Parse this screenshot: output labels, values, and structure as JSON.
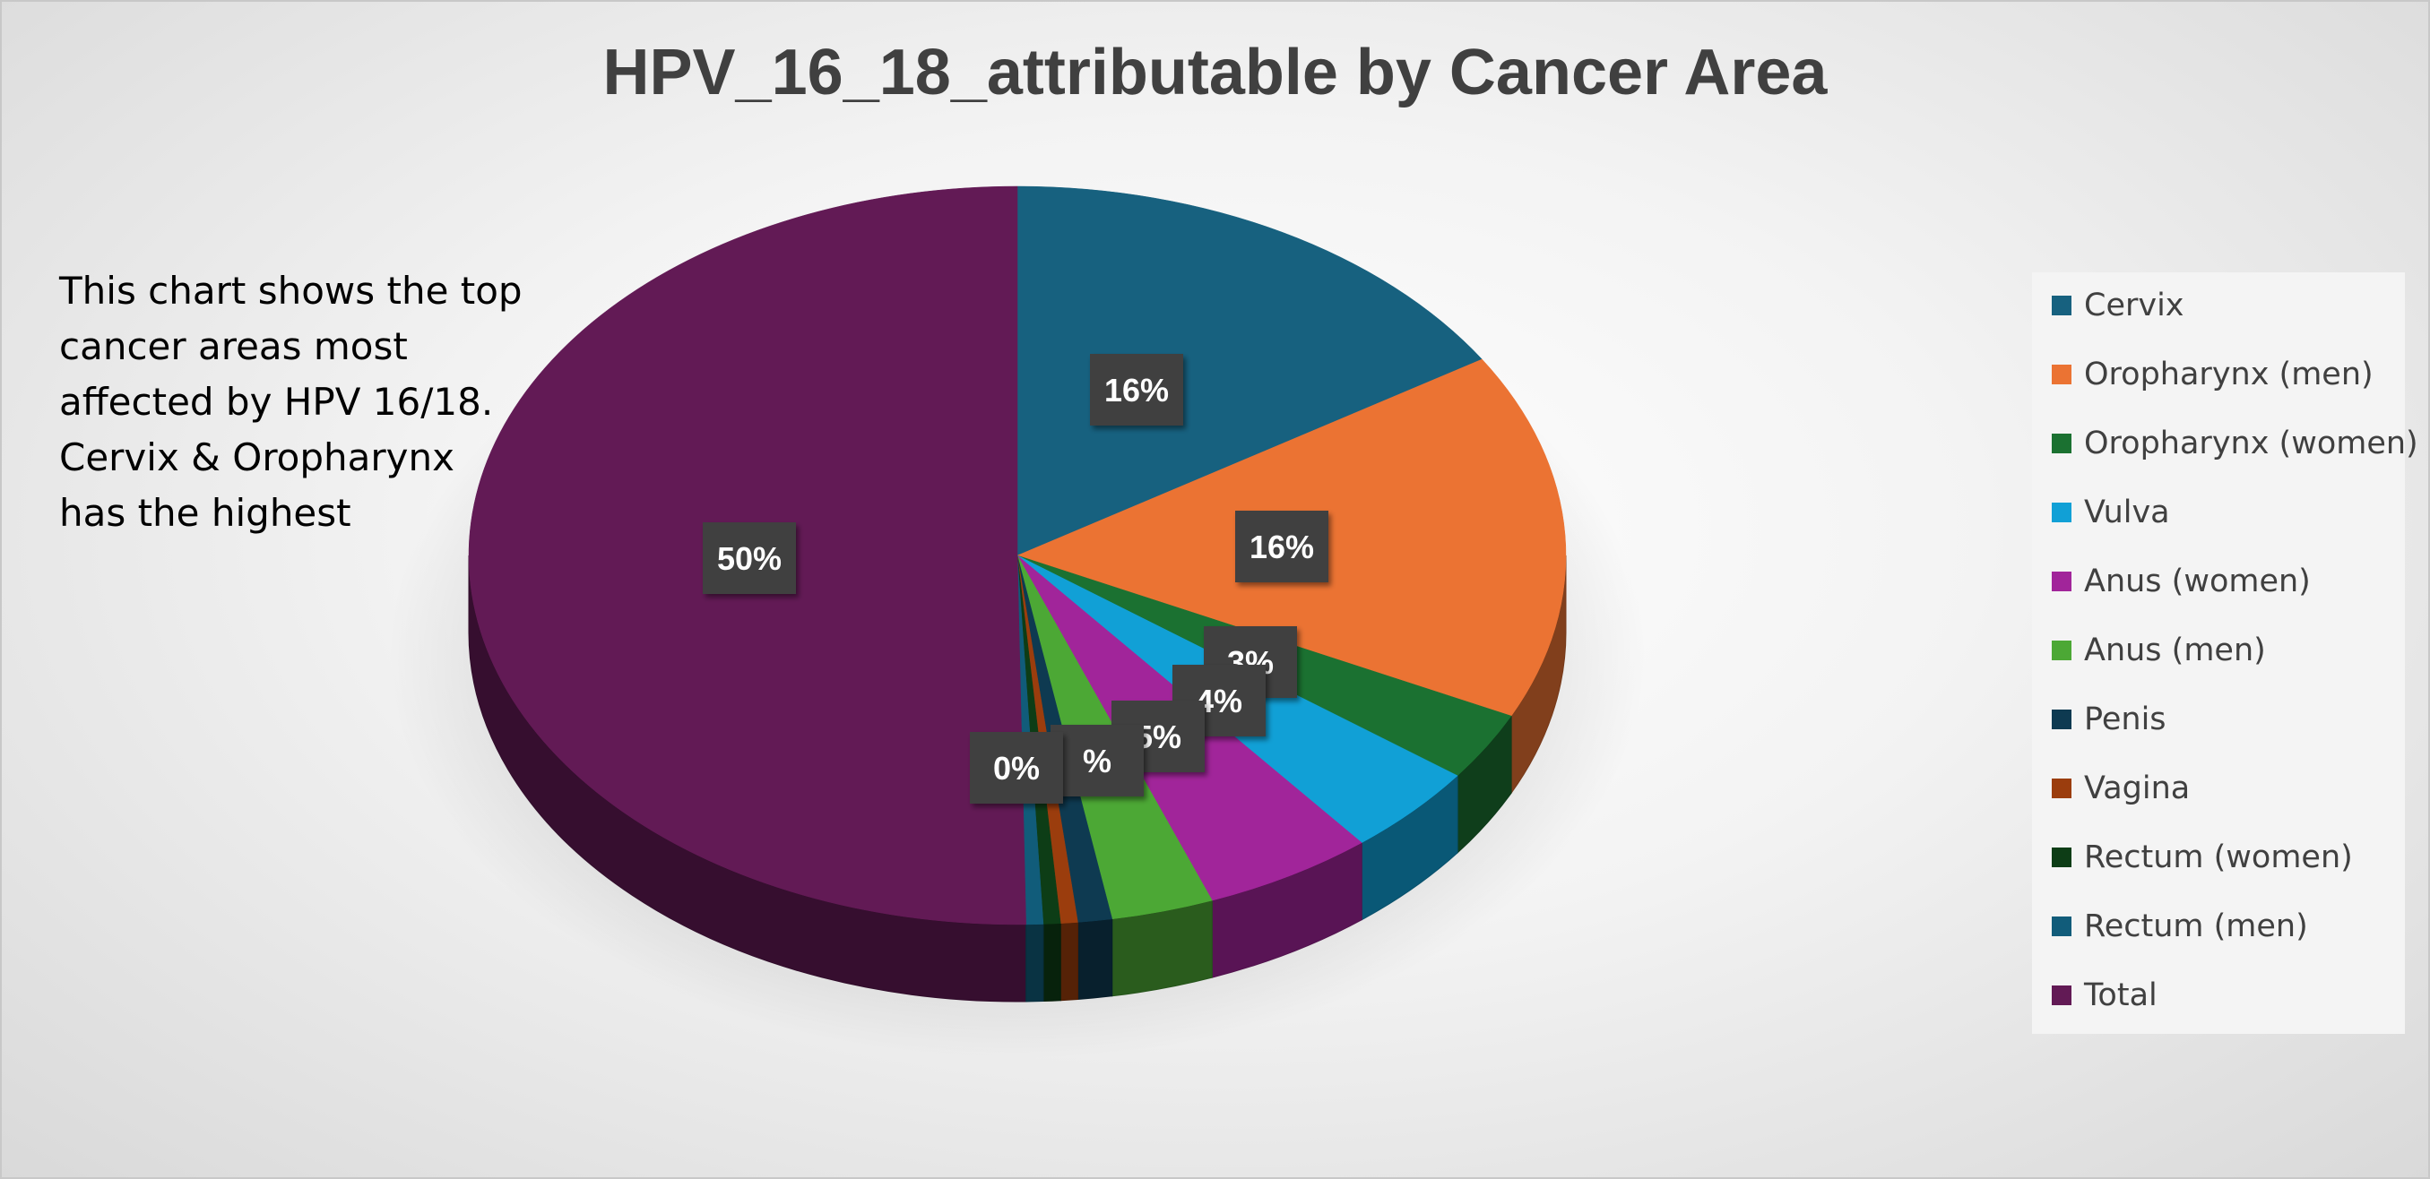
{
  "chart_data": {
    "type": "pie",
    "title": "HPV_16_18_attributable by Cancer Area",
    "annotation": "This chart shows the top cancer areas most affected by HPV 16/18. Cervix & Oropharynx has the highest",
    "annotation_lines": [
      "This chart shows the top",
      "cancer areas most",
      "affected by HPV 16/18.",
      "Cervix & Oropharynx",
      "has the highest"
    ],
    "legend_position": "right",
    "categories": [
      "Cervix",
      "Oropharynx (men)",
      "Oropharynx (women)",
      "Vulva",
      "Anus (women)",
      "Anus (men)",
      "Penis",
      "Vagina",
      "Rectum (women)",
      "Rectum (men)",
      "Total"
    ],
    "values": [
      16,
      16,
      3,
      4,
      5,
      3,
      1,
      0.5,
      0.5,
      0.5,
      50
    ],
    "data_labels": [
      "16%",
      "16%",
      "3%",
      "4%",
      "5%",
      "",
      "%",
      "0%",
      "",
      "",
      "50%"
    ],
    "colors": [
      "#17617F",
      "#EB7333",
      "#1B7131",
      "#11A0D6",
      "#A1259A",
      "#4CA835",
      "#0E3A51",
      "#9B3D0D",
      "#0D3D16",
      "#115C7A",
      "#621A55"
    ]
  }
}
